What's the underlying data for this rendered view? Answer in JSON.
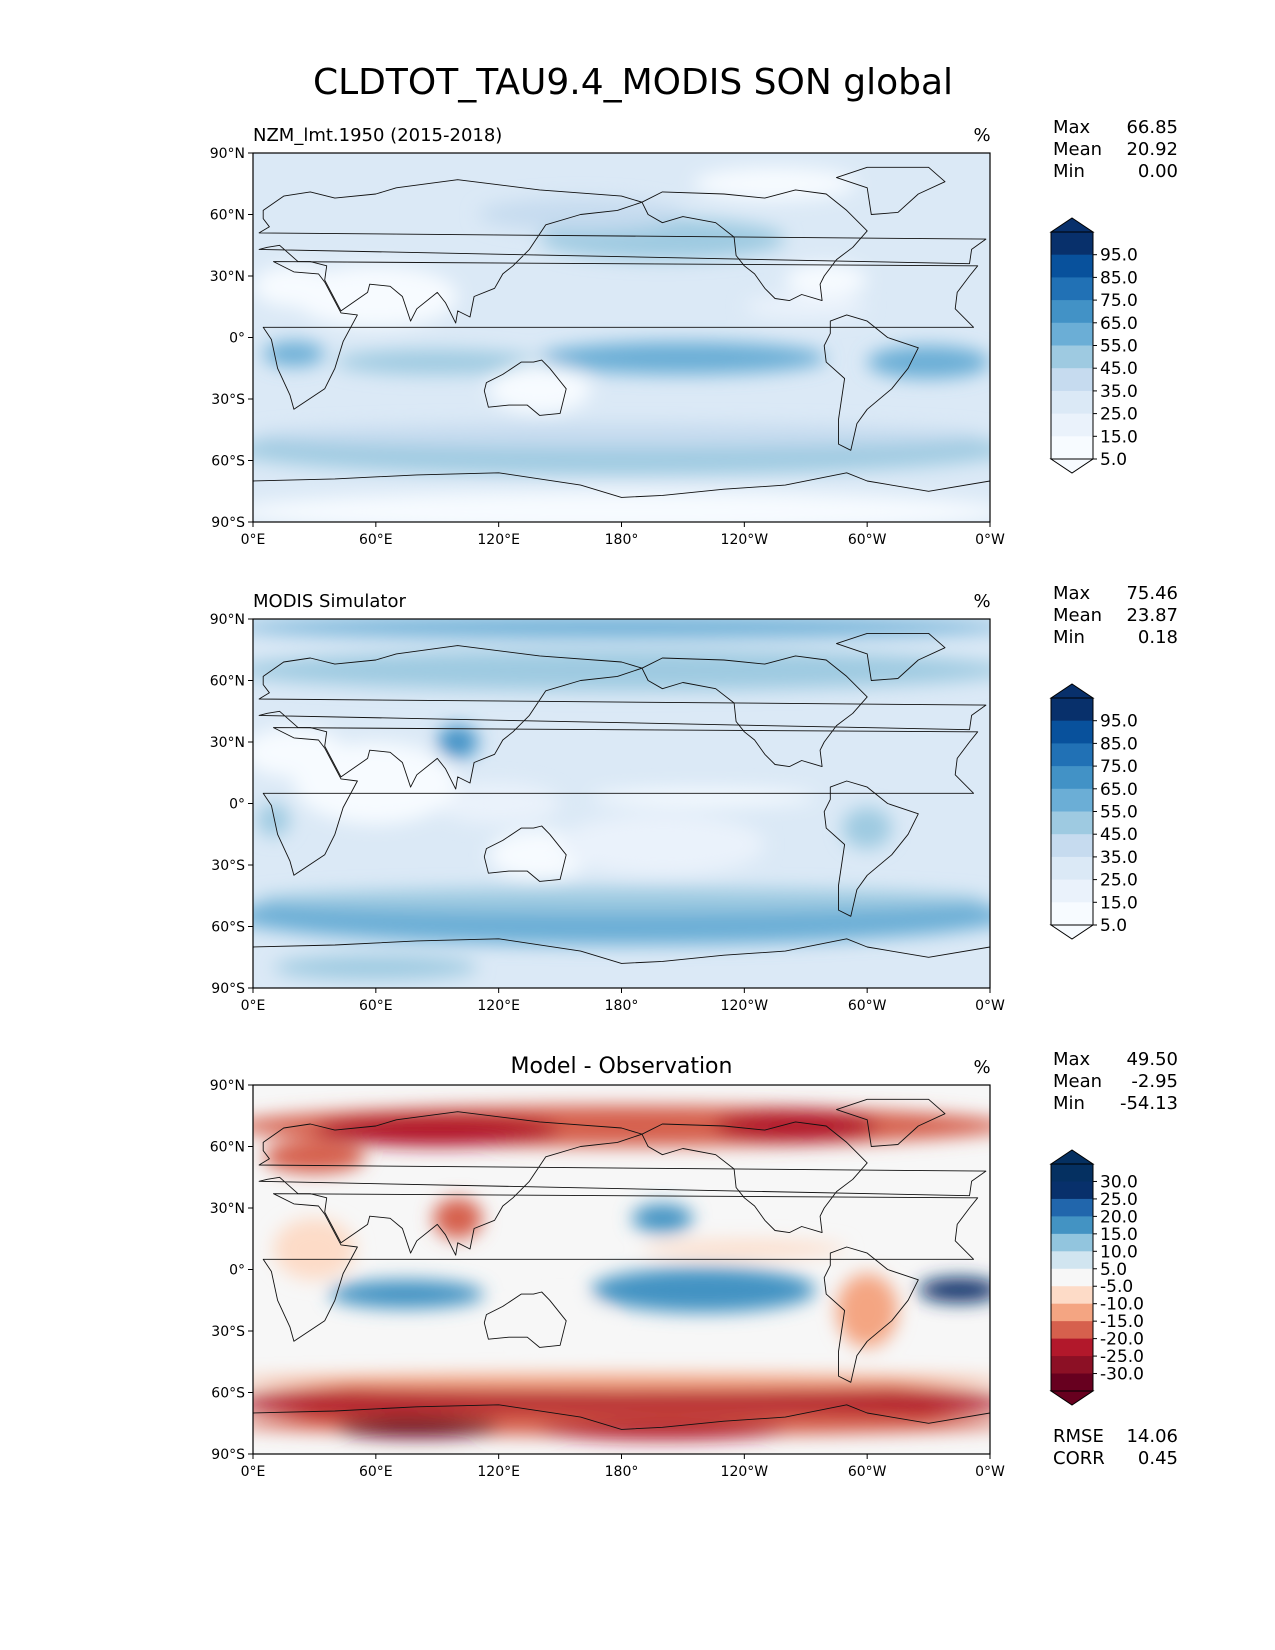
{
  "figure": {
    "title": "CLDTOT_TAU9.4_MODIS SON global"
  },
  "chart_data": [
    {
      "type": "heatmap",
      "map_type": "global-contour-map",
      "title_left": "NZM_lmt.1950 (2015-2018)",
      "title_center": "",
      "units": "%",
      "stats": [
        {
          "label": "Max",
          "value": "66.85"
        },
        {
          "label": "Mean",
          "value": "20.92"
        },
        {
          "label": "Min",
          "value": "0.00"
        }
      ],
      "xlim": [
        0,
        360
      ],
      "ylim": [
        -90,
        90
      ],
      "xticks": [
        "0°E",
        "60°E",
        "120°E",
        "180°",
        "120°W",
        "60°W",
        "0°W"
      ],
      "yticks": [
        "90°N",
        "60°N",
        "30°N",
        "0°",
        "30°S",
        "60°S",
        "90°S"
      ],
      "colormap": "Blues",
      "colorbar_levels": [
        "95.0",
        "85.0",
        "75.0",
        "65.0",
        "55.0",
        "45.0",
        "35.0",
        "25.0",
        "15.0",
        "5.0"
      ],
      "colorbar_colors": [
        "#08306b",
        "#08519c",
        "#2171b5",
        "#4292c6",
        "#6baed6",
        "#9ecae1",
        "#c6dbef",
        "#dbe9f6",
        "#eaf2fb",
        "#f7fbff"
      ],
      "footer_stats": []
    },
    {
      "type": "heatmap",
      "map_type": "global-contour-map",
      "title_left": "MODIS Simulator",
      "title_center": "",
      "units": "%",
      "stats": [
        {
          "label": "Max",
          "value": "75.46"
        },
        {
          "label": "Mean",
          "value": "23.87"
        },
        {
          "label": "Min",
          "value": "0.18"
        }
      ],
      "xlim": [
        0,
        360
      ],
      "ylim": [
        -90,
        90
      ],
      "xticks": [
        "0°E",
        "60°E",
        "120°E",
        "180°",
        "120°W",
        "60°W",
        "0°W"
      ],
      "yticks": [
        "90°N",
        "60°N",
        "30°N",
        "0°",
        "30°S",
        "60°S",
        "90°S"
      ],
      "colormap": "Blues",
      "colorbar_levels": [
        "95.0",
        "85.0",
        "75.0",
        "65.0",
        "55.0",
        "45.0",
        "35.0",
        "25.0",
        "15.0",
        "5.0"
      ],
      "colorbar_colors": [
        "#08306b",
        "#08519c",
        "#2171b5",
        "#4292c6",
        "#6baed6",
        "#9ecae1",
        "#c6dbef",
        "#dbe9f6",
        "#eaf2fb",
        "#f7fbff"
      ],
      "footer_stats": []
    },
    {
      "type": "heatmap",
      "map_type": "global-contour-map",
      "title_left": "",
      "title_center": "Model - Observation",
      "units": "%",
      "stats": [
        {
          "label": "Max",
          "value": "49.50"
        },
        {
          "label": "Mean",
          "value": "-2.95"
        },
        {
          "label": "Min",
          "value": "-54.13"
        }
      ],
      "xlim": [
        0,
        360
      ],
      "ylim": [
        -90,
        90
      ],
      "xticks": [
        "0°E",
        "60°E",
        "120°E",
        "180°",
        "120°W",
        "60°W",
        "0°W"
      ],
      "yticks": [
        "90°N",
        "60°N",
        "30°N",
        "0°",
        "30°S",
        "60°S",
        "90°S"
      ],
      "colormap": "RdBu",
      "colorbar_levels": [
        "30.0",
        "25.0",
        "20.0",
        "15.0",
        "10.0",
        "5.0",
        "-5.0",
        "-10.0",
        "-15.0",
        "-20.0",
        "-25.0",
        "-30.0"
      ],
      "colorbar_colors": [
        "#053061",
        "#08306b",
        "#2166ac",
        "#4393c3",
        "#92c5de",
        "#d1e5f0",
        "#f7f7f7",
        "#fddbc7",
        "#f4a582",
        "#d6604d",
        "#b2182b",
        "#8c1025",
        "#67001f"
      ],
      "footer_stats": [
        {
          "label": "RMSE",
          "value": "14.06"
        },
        {
          "label": "CORR",
          "value": "0.45"
        }
      ]
    }
  ]
}
